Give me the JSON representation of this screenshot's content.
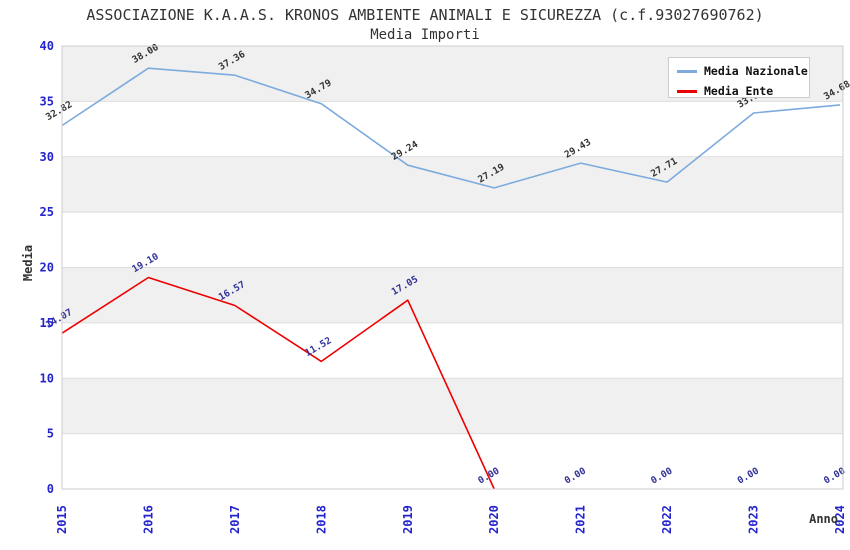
{
  "chart_data": {
    "type": "line",
    "title": "ASSOCIAZIONE K.A.A.S. KRONOS AMBIENTE ANIMALI E SICUREZZA (c.f.93027690762)",
    "subtitle": "Media Importi",
    "x": [
      2015,
      2016,
      2017,
      2018,
      2019,
      2020,
      2021,
      2022,
      2023,
      2024
    ],
    "xlabel": "Anno",
    "ylabel": "Media",
    "ylim": [
      0,
      40
    ],
    "ytick_step": 5,
    "grid": "alternating-horizontal-bands",
    "legend_position": "top-right",
    "series": [
      {
        "name": "Media Nazionale",
        "color": "#7dabde",
        "label_color": "#333333",
        "values": [
          32.82,
          38.0,
          37.36,
          34.79,
          29.24,
          27.19,
          29.43,
          27.71,
          33.95,
          34.68
        ]
      },
      {
        "name": "Media Ente",
        "color": "#ee0000",
        "label_color": "#333399",
        "values": [
          14.07,
          19.1,
          16.57,
          11.52,
          17.05,
          0.0,
          0.0,
          0.0,
          0.0,
          0.0
        ]
      }
    ],
    "colors": {
      "tick_label": "#2424cd",
      "axis_title": "#333333",
      "band_gray": "#f0f0f0",
      "gridline": "#dddddd",
      "plot_border": "#cccccc",
      "background": "#ffffff"
    }
  }
}
